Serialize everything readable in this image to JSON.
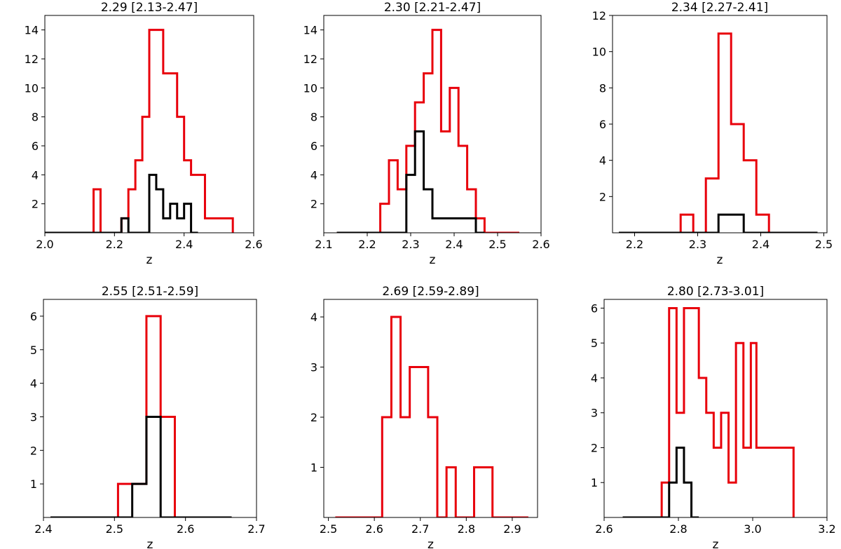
{
  "figure": {
    "background": "#ffffff"
  },
  "chart_data": [
    {
      "type": "step-histogram",
      "title": "2.29 [2.13-2.47]",
      "xlabel": "z",
      "ylabel": "",
      "xlim": [
        2.0,
        2.6
      ],
      "ylim": [
        0,
        15
      ],
      "xticks": [
        2.0,
        2.2,
        2.4,
        2.6
      ],
      "xticklabels": [
        "2.0",
        "2.2",
        "2.4",
        "2.6"
      ],
      "yticks": [
        2,
        4,
        6,
        8,
        10,
        12,
        14
      ],
      "yticklabels": [
        "2",
        "4",
        "6",
        "8",
        "10",
        "12",
        "14"
      ],
      "series": [
        {
          "color": "#e8000b",
          "edges": [
            2.04,
            2.14,
            2.16,
            2.22,
            2.24,
            2.26,
            2.28,
            2.3,
            2.32,
            2.34,
            2.36,
            2.38,
            2.4,
            2.42,
            2.46,
            2.54
          ],
          "values": [
            0,
            3,
            0,
            1,
            3,
            5,
            8,
            14,
            14,
            11,
            11,
            8,
            5,
            4,
            1
          ]
        },
        {
          "color": "#000000",
          "edges": [
            2.0,
            2.22,
            2.24,
            2.3,
            2.32,
            2.34,
            2.36,
            2.38,
            2.4,
            2.42,
            2.44
          ],
          "values": [
            0,
            1,
            0,
            4,
            3,
            1,
            2,
            1,
            2,
            0
          ]
        }
      ]
    },
    {
      "type": "step-histogram",
      "title": "2.30 [2.21-2.47]",
      "xlabel": "z",
      "ylabel": "",
      "xlim": [
        2.1,
        2.6
      ],
      "ylim": [
        0,
        15
      ],
      "xticks": [
        2.1,
        2.2,
        2.3,
        2.4,
        2.5,
        2.6
      ],
      "xticklabels": [
        "2.1",
        "2.2",
        "2.3",
        "2.4",
        "2.5",
        "2.6"
      ],
      "yticks": [
        2,
        4,
        6,
        8,
        10,
        12,
        14
      ],
      "yticklabels": [
        "2",
        "4",
        "6",
        "8",
        "10",
        "12",
        "14"
      ],
      "series": [
        {
          "color": "#e8000b",
          "edges": [
            2.13,
            2.23,
            2.25,
            2.27,
            2.29,
            2.31,
            2.33,
            2.35,
            2.37,
            2.39,
            2.41,
            2.43,
            2.45,
            2.47,
            2.55
          ],
          "values": [
            0,
            2,
            5,
            3,
            6,
            9,
            11,
            14,
            7,
            10,
            6,
            3,
            1,
            0
          ]
        },
        {
          "color": "#000000",
          "edges": [
            2.13,
            2.29,
            2.31,
            2.33,
            2.35,
            2.45,
            2.47
          ],
          "values": [
            0,
            4,
            7,
            3,
            1,
            0
          ]
        }
      ]
    },
    {
      "type": "step-histogram",
      "title": "2.34 [2.27-2.41]",
      "xlabel": "z",
      "ylabel": "",
      "xlim": [
        2.165,
        2.505
      ],
      "ylim": [
        0,
        12
      ],
      "xticks": [
        2.2,
        2.3,
        2.4,
        2.5
      ],
      "xticklabels": [
        "2.2",
        "2.3",
        "2.4",
        "2.5"
      ],
      "yticks": [
        2,
        4,
        6,
        8,
        10,
        12
      ],
      "yticklabels": [
        "2",
        "4",
        "6",
        "8",
        "10",
        "12"
      ],
      "series": [
        {
          "color": "#e8000b",
          "edges": [
            2.175,
            2.273,
            2.293,
            2.313,
            2.333,
            2.353,
            2.373,
            2.393,
            2.413,
            2.49
          ],
          "values": [
            0,
            1,
            0,
            3,
            11,
            6,
            4,
            1,
            0
          ]
        },
        {
          "color": "#000000",
          "edges": [
            2.175,
            2.333,
            2.353,
            2.373,
            2.49
          ],
          "values": [
            0,
            1,
            1,
            0
          ]
        }
      ]
    },
    {
      "type": "step-histogram",
      "title": "2.55 [2.51-2.59]",
      "xlabel": "z",
      "ylabel": "",
      "xlim": [
        2.4,
        2.7
      ],
      "ylim": [
        0,
        6.5
      ],
      "xticks": [
        2.4,
        2.5,
        2.6,
        2.7
      ],
      "xticklabels": [
        "2.4",
        "2.5",
        "2.6",
        "2.7"
      ],
      "yticks": [
        1,
        2,
        3,
        4,
        5,
        6
      ],
      "yticklabels": [
        "1",
        "2",
        "3",
        "4",
        "5",
        "6"
      ],
      "series": [
        {
          "color": "#e8000b",
          "edges": [
            2.41,
            2.505,
            2.525,
            2.545,
            2.565,
            2.585,
            2.665
          ],
          "values": [
            0,
            1,
            1,
            6,
            3,
            0
          ]
        },
        {
          "color": "#000000",
          "edges": [
            2.41,
            2.525,
            2.545,
            2.565,
            2.665
          ],
          "values": [
            0,
            1,
            3,
            0
          ]
        }
      ]
    },
    {
      "type": "step-histogram",
      "title": "2.69 [2.59-2.89]",
      "xlabel": "z",
      "ylabel": "",
      "xlim": [
        2.49,
        2.955
      ],
      "ylim": [
        0,
        4.35
      ],
      "xticks": [
        2.5,
        2.6,
        2.7,
        2.8,
        2.9
      ],
      "xticklabels": [
        "2.5",
        "2.6",
        "2.7",
        "2.8",
        "2.9"
      ],
      "yticks": [
        1,
        2,
        3,
        4
      ],
      "yticklabels": [
        "1",
        "2",
        "3",
        "4"
      ],
      "series": [
        {
          "color": "#e8000b",
          "edges": [
            2.515,
            2.617,
            2.637,
            2.657,
            2.677,
            2.697,
            2.717,
            2.737,
            2.757,
            2.777,
            2.797,
            2.817,
            2.837,
            2.857,
            2.935
          ],
          "values": [
            0,
            2,
            4,
            2,
            3,
            3,
            2,
            0,
            1,
            0,
            0,
            1,
            1,
            0
          ]
        }
      ]
    },
    {
      "type": "step-histogram",
      "title": "2.80 [2.73-3.01]",
      "xlabel": "z",
      "ylabel": "",
      "xlim": [
        2.6,
        3.2
      ],
      "ylim": [
        0,
        6.25
      ],
      "xticks": [
        2.6,
        2.8,
        3.0,
        3.2
      ],
      "xticklabels": [
        "2.6",
        "2.8",
        "3.0",
        "3.2"
      ],
      "yticks": [
        1,
        2,
        3,
        4,
        5,
        6
      ],
      "yticklabels": [
        "1",
        "2",
        "3",
        "4",
        "5",
        "6"
      ],
      "series": [
        {
          "color": "#e8000b",
          "edges": [
            2.65,
            2.755,
            2.775,
            2.795,
            2.815,
            2.835,
            2.855,
            2.875,
            2.895,
            2.915,
            2.935,
            2.955,
            2.975,
            2.995,
            3.01,
            3.11
          ],
          "values": [
            0,
            1,
            6,
            3,
            6,
            6,
            4,
            3,
            2,
            3,
            1,
            5,
            2,
            5,
            2
          ]
        },
        {
          "color": "#000000",
          "edges": [
            2.65,
            2.775,
            2.795,
            2.815,
            2.835,
            2.855
          ],
          "values": [
            0,
            1,
            2,
            1,
            0
          ]
        }
      ]
    }
  ]
}
